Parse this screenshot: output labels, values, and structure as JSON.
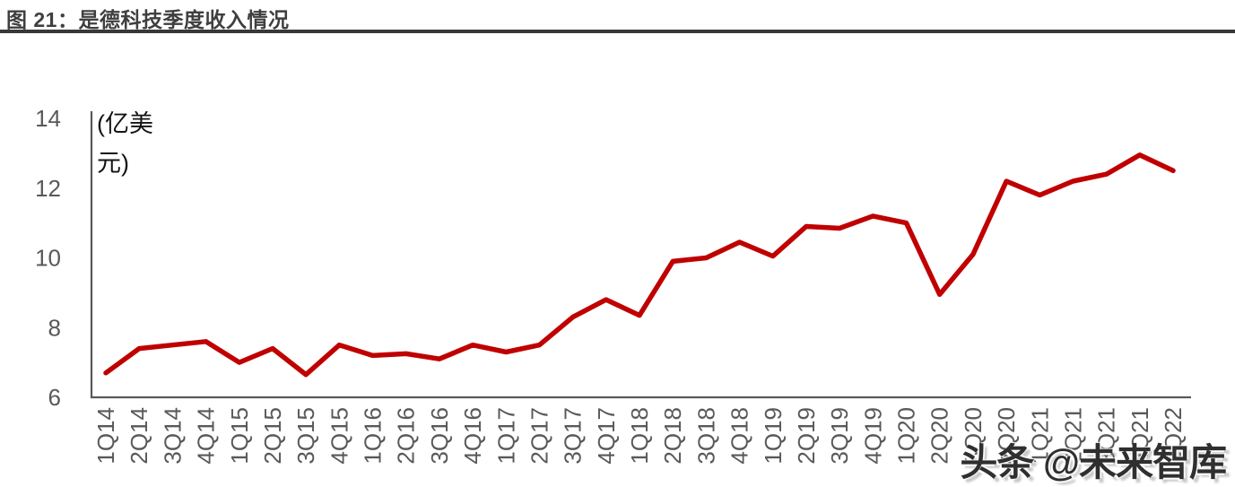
{
  "figure": {
    "title": "图 21：是德科技季度收入情况"
  },
  "watermark": {
    "text": "头条 @未来智库"
  },
  "chart": {
    "unit_lines": [
      "(亿美",
      "元)"
    ]
  },
  "chart_data": {
    "type": "line",
    "title": "是德科技季度收入情况",
    "xlabel": "",
    "ylabel": "(亿美元)",
    "categories": [
      "1Q14",
      "2Q14",
      "3Q14",
      "4Q14",
      "1Q15",
      "2Q15",
      "3Q15",
      "4Q15",
      "1Q16",
      "2Q16",
      "3Q16",
      "4Q16",
      "1Q17",
      "2Q17",
      "3Q17",
      "4Q17",
      "1Q18",
      "2Q18",
      "3Q18",
      "4Q18",
      "1Q19",
      "2Q19",
      "3Q19",
      "4Q19",
      "1Q20",
      "2Q20",
      "3Q20",
      "4Q20",
      "1Q21",
      "2Q21",
      "3Q21",
      "4Q21",
      "1Q22"
    ],
    "values": [
      6.7,
      7.4,
      7.5,
      7.6,
      7.0,
      7.4,
      6.65,
      7.5,
      7.2,
      7.25,
      7.1,
      7.5,
      7.3,
      7.5,
      8.3,
      8.8,
      8.35,
      9.9,
      10.0,
      10.45,
      10.05,
      10.9,
      10.85,
      11.2,
      11.0,
      8.95,
      10.1,
      12.2,
      11.8,
      12.2,
      12.4,
      12.95,
      12.5
    ],
    "ylim": [
      6,
      14
    ],
    "yticks": [
      6,
      8,
      10,
      12,
      14
    ],
    "grid": false,
    "legend": "none",
    "line_color": "#C00000",
    "axis_color": "#595959",
    "tick_label_color": "#595959"
  }
}
